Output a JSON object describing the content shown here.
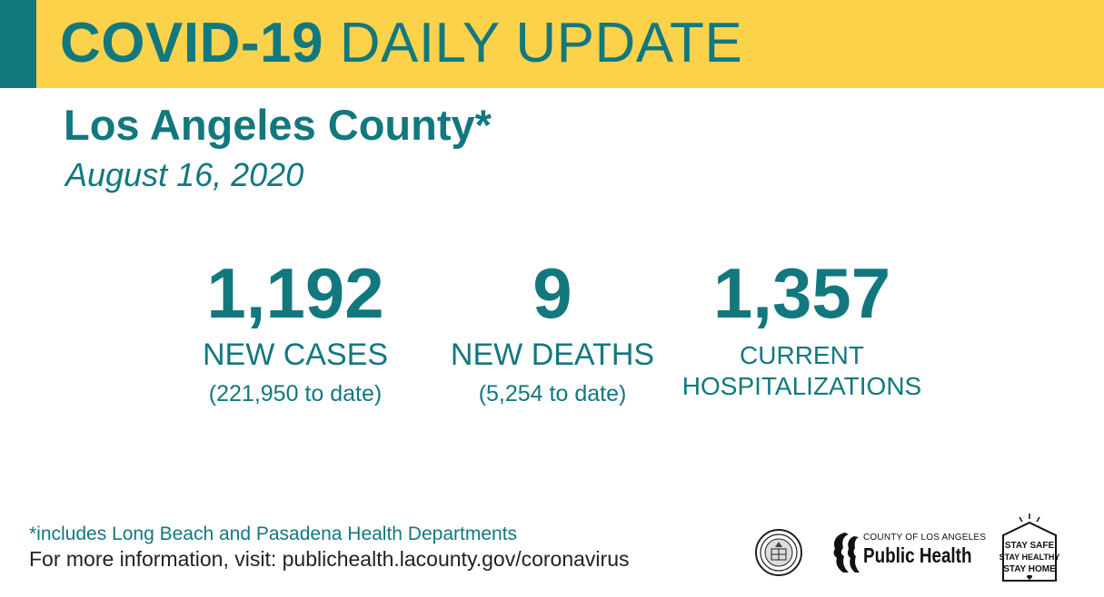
{
  "header": {
    "title_bold": "COVID-19",
    "title_rest": "DAILY UPDATE",
    "colors": {
      "band": "#fdd24b",
      "accent": "#12787e",
      "text": "#12787e"
    }
  },
  "location": "Los Angeles County*",
  "date": "August 16, 2020",
  "stats": {
    "cases": {
      "value": "1,192",
      "label": "NEW CASES",
      "to_date": "(221,950 to date)"
    },
    "deaths": {
      "value": "9",
      "label": "NEW DEATHS",
      "to_date": "(5,254 to date)"
    },
    "hospitalizations": {
      "value": "1,357",
      "label_line1": "CURRENT",
      "label_line2": "HOSPITALIZATIONS"
    }
  },
  "footer": {
    "footnote": "*includes Long Beach and Pasadena Health Departments",
    "more_info": "For more information, visit: publichealth.lacounty.gov/coronavirus"
  },
  "logos": {
    "seal_icon": "county-seal-icon",
    "public_health_county": "COUNTY OF LOS ANGELES",
    "public_health_name": "Public Health",
    "stay_safe_lines": [
      "STAY SAFE",
      "STAY HEALTHY",
      "STAY HOME"
    ]
  }
}
